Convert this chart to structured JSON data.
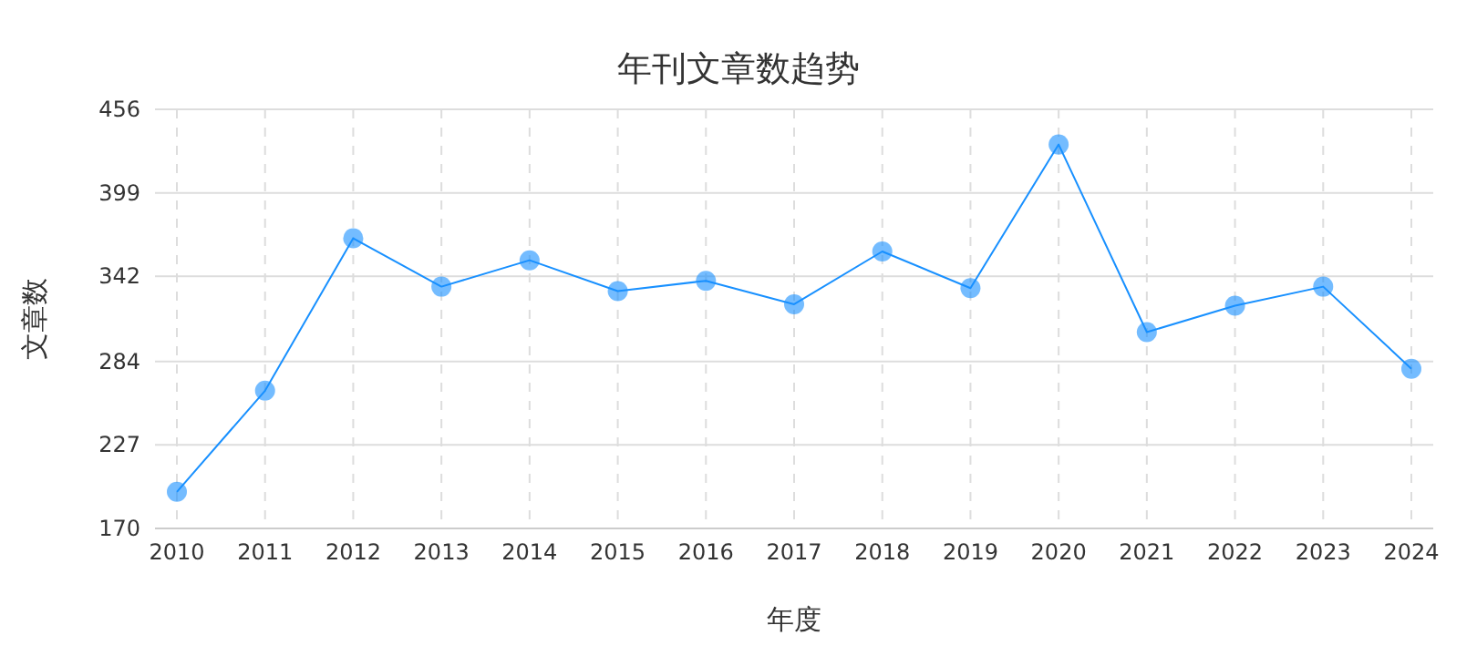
{
  "chart_data": {
    "type": "line",
    "title": "年刊文章数趋势",
    "xlabel": "年度",
    "ylabel": "文章数",
    "categories": [
      "2010",
      "2011",
      "2012",
      "2013",
      "2014",
      "2015",
      "2016",
      "2017",
      "2018",
      "2019",
      "2020",
      "2021",
      "2022",
      "2023",
      "2024"
    ],
    "series": [
      {
        "color": "#1890ff",
        "values": [
          195,
          264,
          368,
          335,
          353,
          332,
          339,
          323,
          359,
          334,
          432,
          304,
          322,
          335,
          279
        ]
      }
    ],
    "ylim": [
      170,
      456
    ],
    "yticks": [
      170,
      227,
      284,
      342,
      399,
      456
    ],
    "grid": true,
    "marker": "circle",
    "line_style": "solid"
  }
}
